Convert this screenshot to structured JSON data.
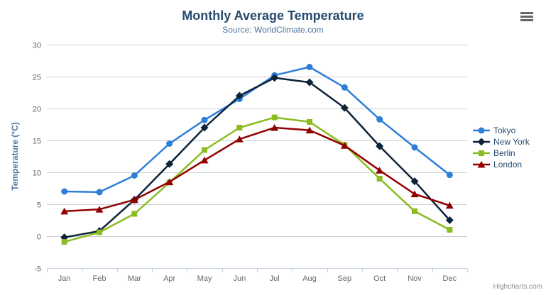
{
  "credits": "Highcharts.com",
  "chart_data": {
    "type": "line",
    "title": "Monthly Average Temperature",
    "subtitle": "Source: WorldClimate.com",
    "categories": [
      "Jan",
      "Feb",
      "Mar",
      "Apr",
      "May",
      "Jun",
      "Jul",
      "Aug",
      "Sep",
      "Oct",
      "Nov",
      "Dec"
    ],
    "xlabel": "",
    "ylabel": "Temperature (°C)",
    "ylim": [
      -5,
      30
    ],
    "ytick_interval": 5,
    "grid": true,
    "legend_position": "right",
    "series": [
      {
        "name": "Tokyo",
        "color": "#2f7ed8",
        "marker": "circle",
        "values": [
          7.0,
          6.9,
          9.5,
          14.5,
          18.2,
          21.5,
          25.2,
          26.5,
          23.3,
          18.3,
          13.9,
          9.6
        ]
      },
      {
        "name": "New York",
        "color": "#0d233a",
        "marker": "diamond",
        "values": [
          -0.2,
          0.8,
          5.7,
          11.3,
          17.0,
          22.0,
          24.8,
          24.1,
          20.1,
          14.1,
          8.6,
          2.5
        ]
      },
      {
        "name": "Berlin",
        "color": "#8bbc21",
        "marker": "square",
        "values": [
          -0.9,
          0.6,
          3.5,
          8.4,
          13.5,
          17.0,
          18.6,
          17.9,
          14.3,
          9.0,
          3.9,
          1.0
        ]
      },
      {
        "name": "London",
        "color": "#910000",
        "marker": "triangle",
        "values": [
          3.9,
          4.2,
          5.7,
          8.5,
          11.9,
          15.2,
          17.0,
          16.6,
          14.2,
          10.3,
          6.6,
          4.8
        ]
      }
    ],
    "colors": {
      "title": "#274b6d",
      "subtitle": "#4d759e",
      "axis_label": "#666666",
      "axis_title": "#4d759e",
      "grid": "#d0d0d0",
      "axis_line": "#c0d0e0",
      "legend_text": "#274b6d",
      "credits": "#909090",
      "menu_icon": "#666666"
    }
  }
}
